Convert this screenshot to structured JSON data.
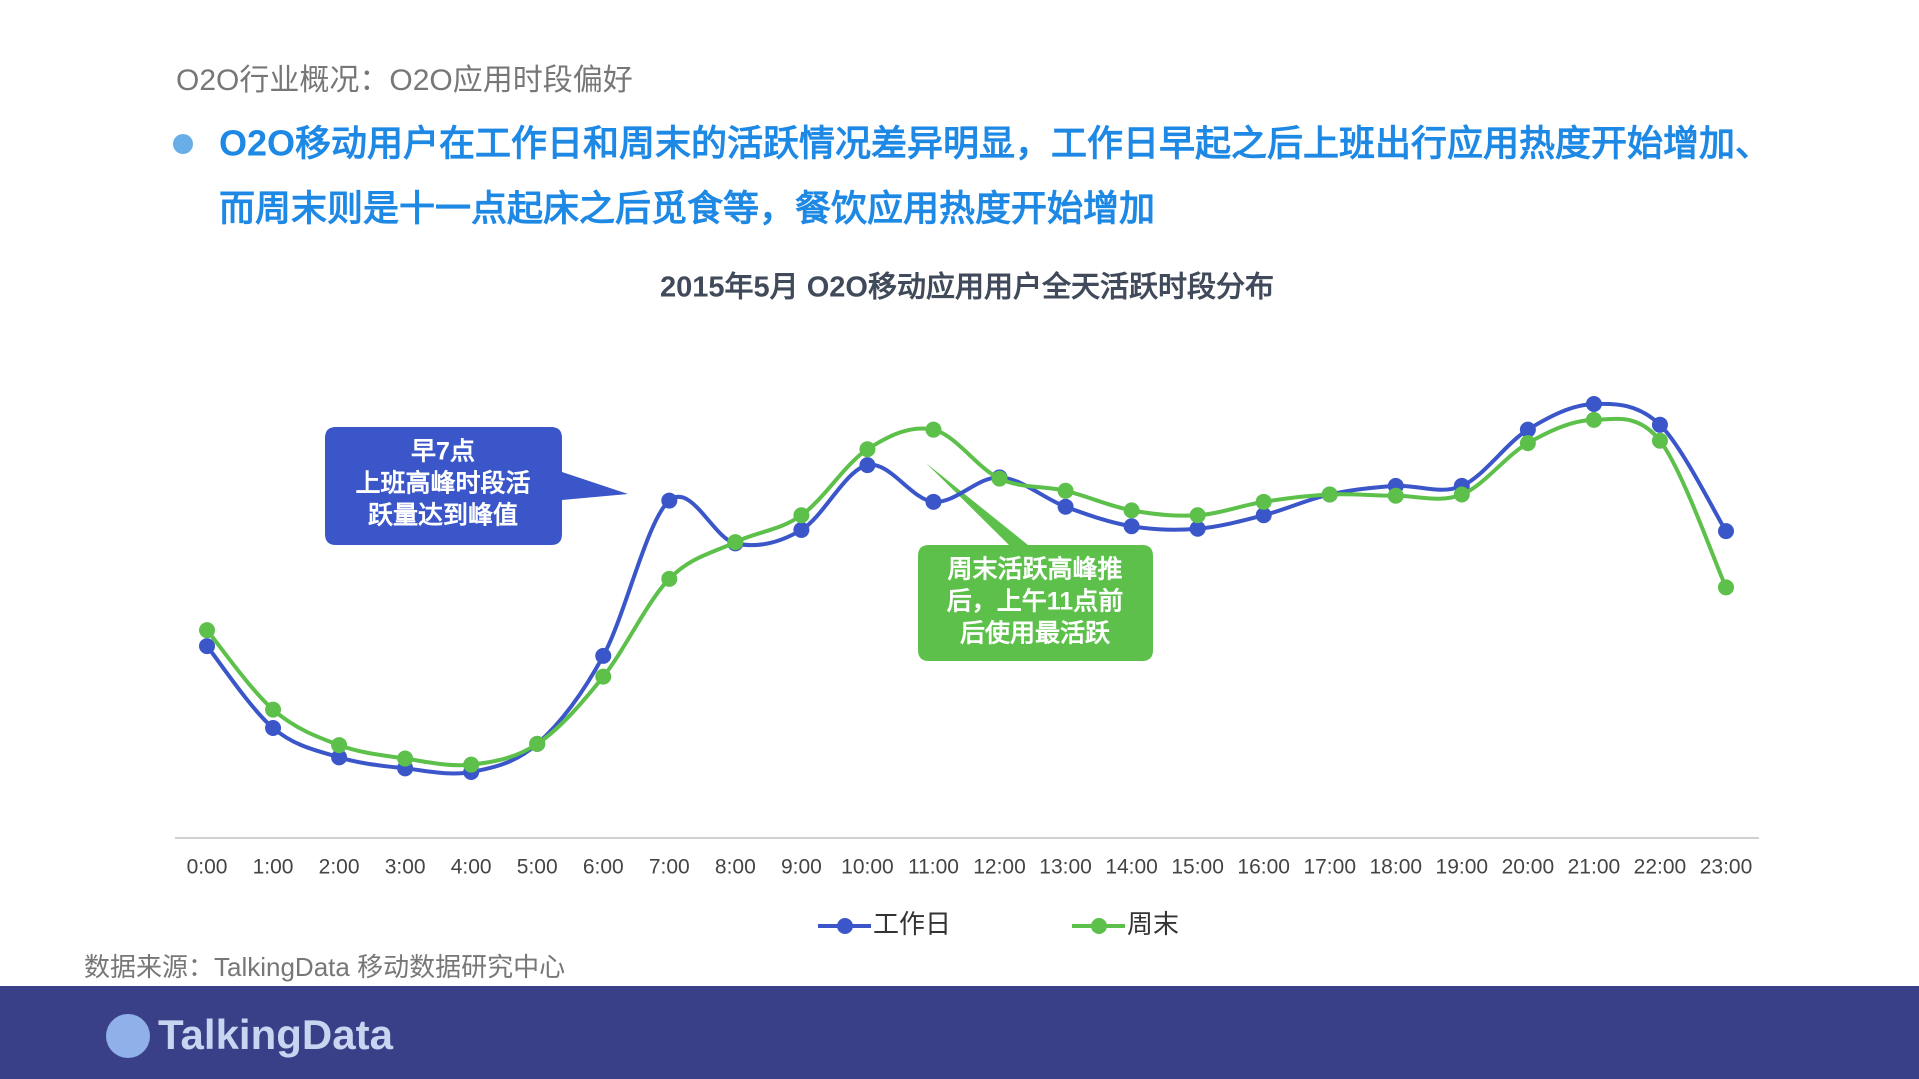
{
  "header": {
    "title": "O2O行业概况：O2O应用时段偏好",
    "bullet": [
      "O2O移动用户在工作日和周末的活跃情况差异明显，工作日早起之后上班出行应用热度开始增加、",
      "而周末则是十一点起床之后觅食等，餐饮应用热度开始增加"
    ]
  },
  "chart_data": {
    "type": "line",
    "title": "2015年5月  O2O移动应用用户全天活跃时段分布",
    "categories": [
      "0:00",
      "1:00",
      "2:00",
      "3:00",
      "4:00",
      "5:00",
      "6:00",
      "7:00",
      "8:00",
      "9:00",
      "10:00",
      "11:00",
      "12:00",
      "13:00",
      "14:00",
      "15:00",
      "16:00",
      "17:00",
      "18:00",
      "19:00",
      "20:00",
      "21:00",
      "22:00",
      "23:00"
    ],
    "series": [
      {
        "name": "工作日",
        "color": "#3a56c8",
        "values": [
          157,
          90,
          66,
          57,
          54,
          77,
          149,
          276,
          241,
          252,
          305,
          275,
          295,
          271,
          255,
          253,
          264,
          281,
          288,
          288,
          334,
          355,
          338,
          251
        ]
      },
      {
        "name": "周末",
        "color": "#5cc04a",
        "values": [
          170,
          105,
          76,
          65,
          60,
          77,
          132,
          212,
          242,
          264,
          318,
          334,
          294,
          284,
          268,
          264,
          275,
          281,
          280,
          281,
          323,
          342,
          325,
          205
        ]
      }
    ],
    "ylim": [
      0,
      400
    ],
    "legend": "bottom",
    "smooth": true,
    "annotations": [
      {
        "lines": [
          "早7点",
          "上班高峰时段活",
          "跃量达到峰值"
        ],
        "color": "#3a56c8"
      },
      {
        "lines": [
          "周末活跃高峰推",
          "后，上午11点前",
          "后使用最活跃"
        ],
        "color": "#5cc04a"
      }
    ]
  },
  "source": "数据来源：TalkingData 移动数据研究中心",
  "footer": {
    "logo": "TalkingData"
  }
}
